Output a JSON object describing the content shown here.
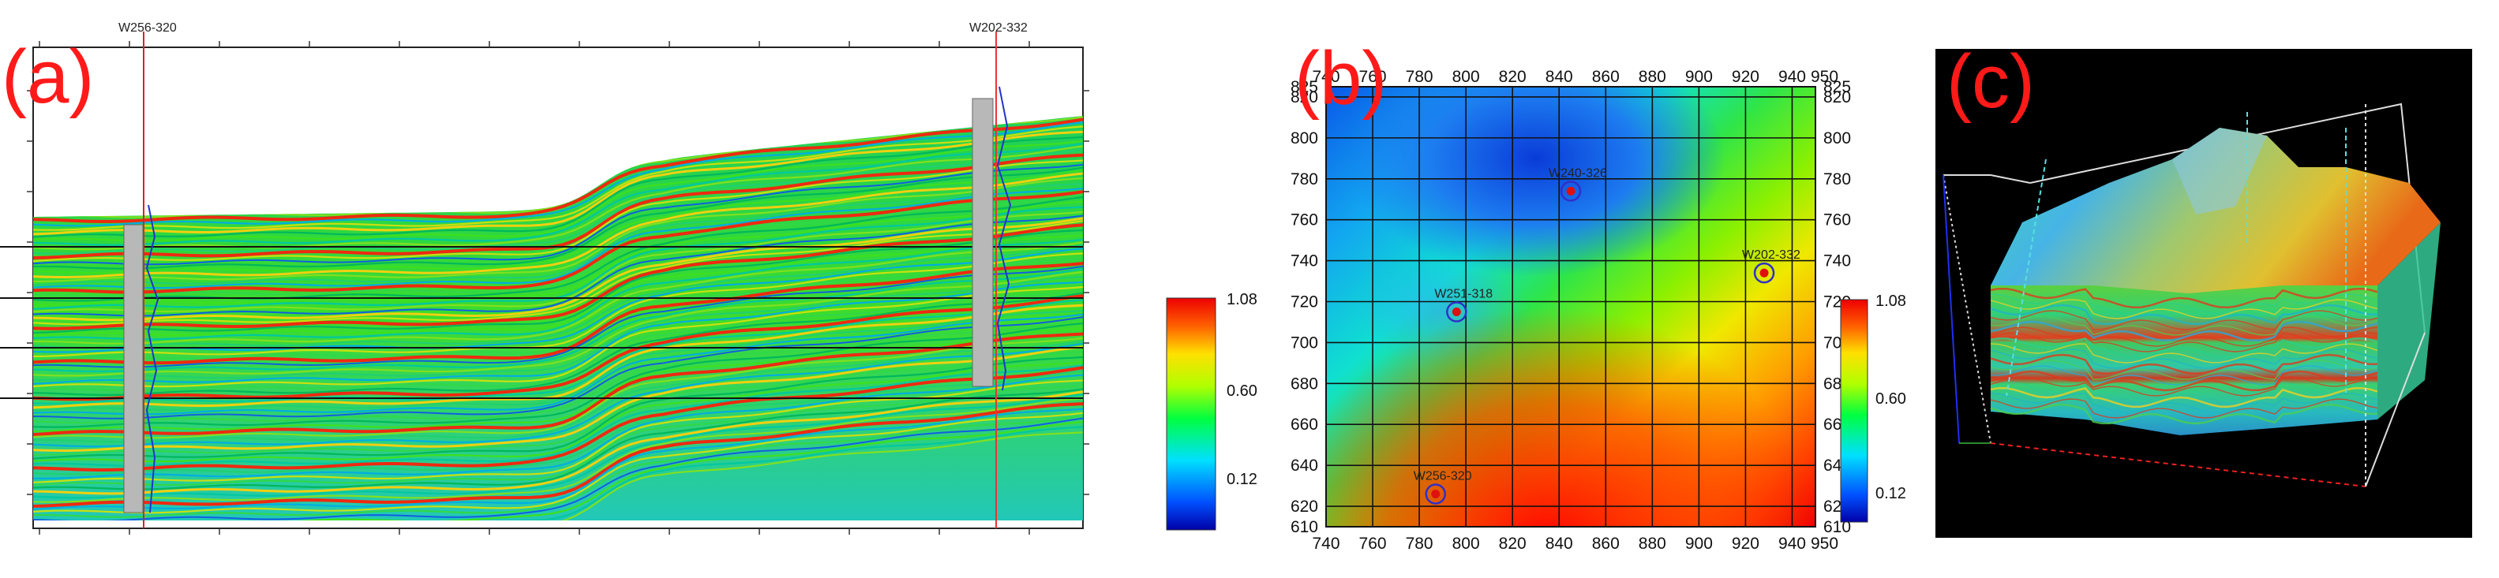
{
  "panels": {
    "a": {
      "label": "(a)",
      "wells": [
        "W256-320",
        "W202-332"
      ],
      "colorbar": {
        "max": "1.08",
        "mid": "0.60",
        "min": "0.12"
      }
    },
    "b": {
      "label": "(b)",
      "wells": [
        {
          "name": "W240-326",
          "x": 845,
          "y": 774
        },
        {
          "name": "W202-332",
          "x": 928,
          "y": 734
        },
        {
          "name": "W251-318",
          "x": 796,
          "y": 715
        },
        {
          "name": "W256-320",
          "x": 787,
          "y": 626
        }
      ],
      "colorbar": {
        "max": "1.08",
        "mid": "0.60",
        "min": "0.12"
      }
    },
    "c": {
      "label": "(c)"
    }
  },
  "chart_data": [
    {
      "type": "heatmap",
      "x_ticks": [
        "740",
        "760",
        "780",
        "800",
        "820",
        "840",
        "860",
        "880",
        "900",
        "920",
        "940",
        "950"
      ],
      "y_ticks": [
        "610",
        "620",
        "640",
        "660",
        "680",
        "700",
        "720",
        "740",
        "760",
        "780",
        "800",
        "820",
        "825"
      ],
      "xlim": [
        740,
        950
      ],
      "ylim": [
        610,
        825
      ],
      "grid": true,
      "colorbar": {
        "max": 1.08,
        "mid": 0.6,
        "min": 0.12
      }
    }
  ]
}
